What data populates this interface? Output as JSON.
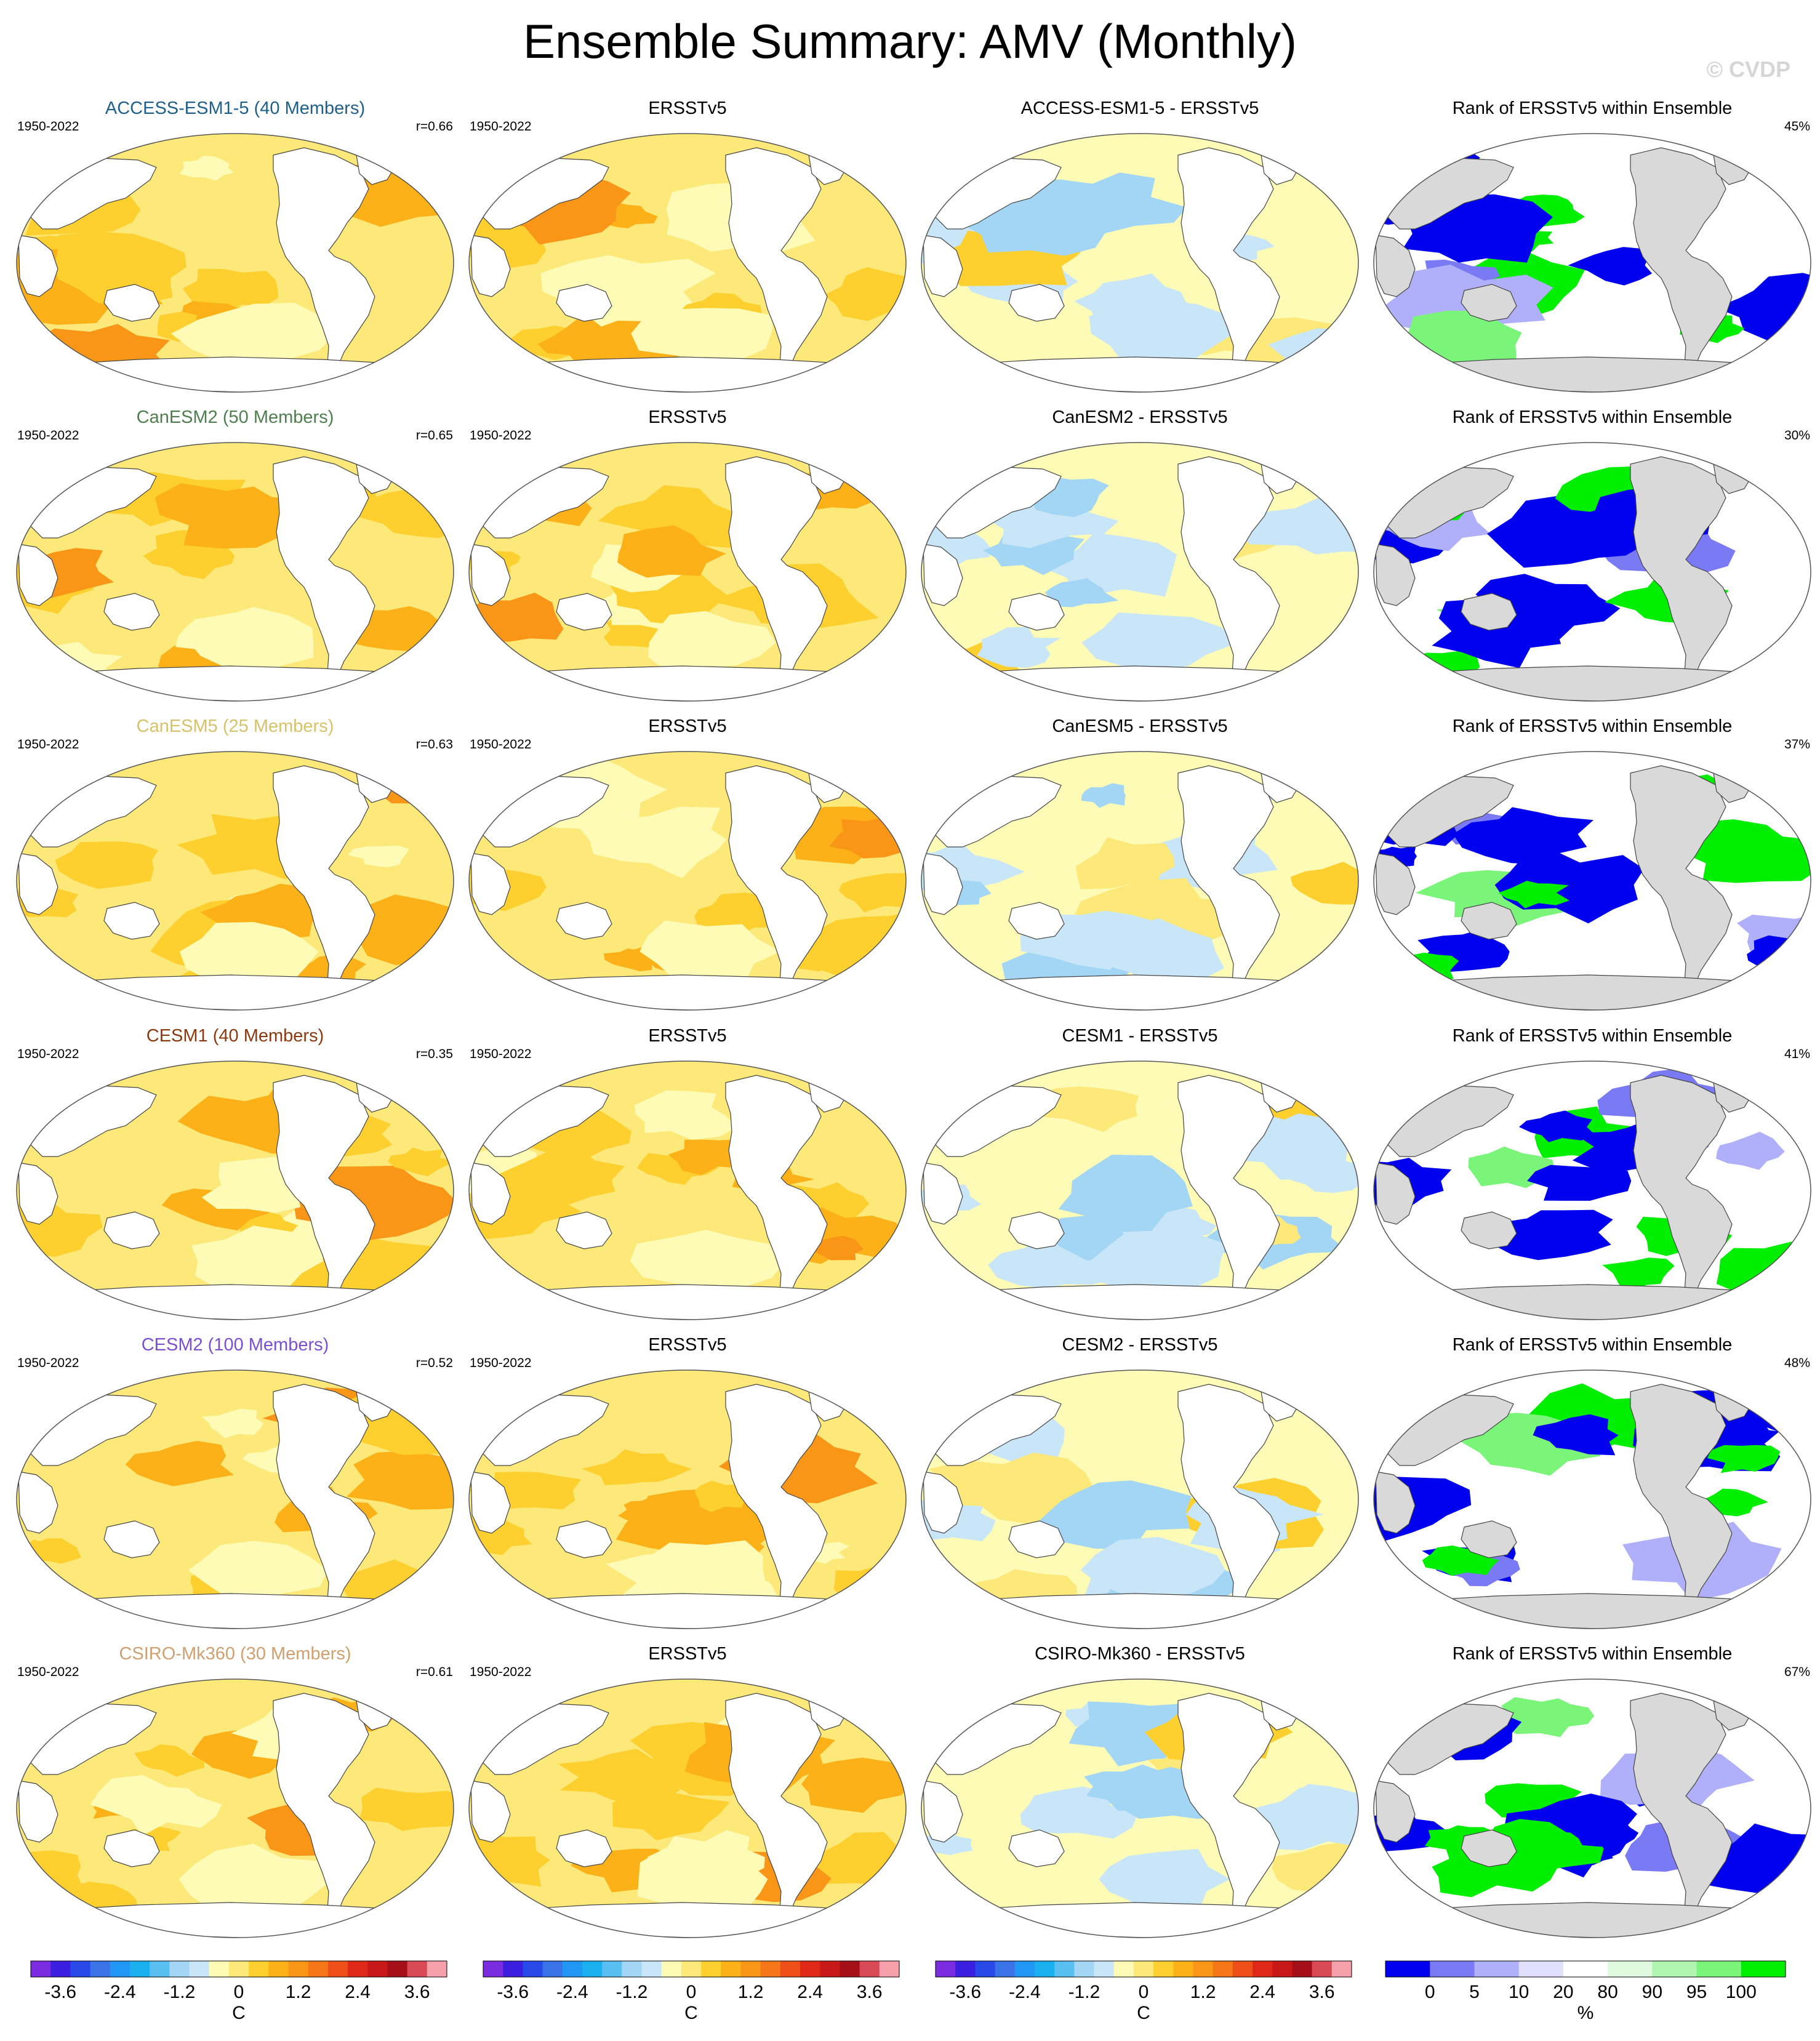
{
  "title": "Ensemble Summary: AMV (Monthly)",
  "watermark": "© CVDP",
  "colors": {
    "sst_levels": [
      "#7b2be0",
      "#3c1ee0",
      "#2848e8",
      "#3a72e8",
      "#2196f3",
      "#1ab0f0",
      "#59bff0",
      "#a3d6f5",
      "#c8e6f7",
      "#fdfbb6",
      "#fde979",
      "#fdd030",
      "#fbb117",
      "#f99618",
      "#f67718",
      "#ee4f18",
      "#e02818",
      "#c81818",
      "#a51018",
      "#d84a55",
      "#f5a0aa"
    ],
    "rank_levels": [
      "#0000ee",
      "#7a7af5",
      "#b0b0fa",
      "#e0e0fc",
      "#ffffff",
      "#e0fae0",
      "#b0f5b0",
      "#7af57a",
      "#00ee00"
    ],
    "land": "#ffffff",
    "land_gray": "#d9d9d9",
    "outline": "#555555"
  },
  "rows": [
    {
      "model_title": "ACCESS-ESM1-5 (40 Members)",
      "model_color": "#1f5f8b",
      "period": "1950-2022",
      "corr": "r=0.66",
      "obs_title": "ERSSTv5",
      "obs_period": "1950-2022",
      "diff_title": "ACCESS-ESM1-5 - ERSSTv5",
      "rank_title": "Rank of ERSSTv5 within Ensemble",
      "rank_pct": "45%"
    },
    {
      "model_title": "CanESM2 (50 Members)",
      "model_color": "#4f7f4f",
      "period": "1950-2022",
      "corr": "r=0.65",
      "obs_title": "ERSSTv5",
      "obs_period": "1950-2022",
      "diff_title": "CanESM2 - ERSSTv5",
      "rank_title": "Rank of ERSSTv5 within Ensemble",
      "rank_pct": "30%"
    },
    {
      "model_title": "CanESM5 (25 Members)",
      "model_color": "#d6c26a",
      "period": "1950-2022",
      "corr": "r=0.63",
      "obs_title": "ERSSTv5",
      "obs_period": "1950-2022",
      "diff_title": "CanESM5 - ERSSTv5",
      "rank_title": "Rank of ERSSTv5 within Ensemble",
      "rank_pct": "37%"
    },
    {
      "model_title": "CESM1 (40 Members)",
      "model_color": "#8b3a0f",
      "period": "1950-2022",
      "corr": "r=0.35",
      "obs_title": "ERSSTv5",
      "obs_period": "1950-2022",
      "diff_title": "CESM1 - ERSSTv5",
      "rank_title": "Rank of ERSSTv5 within Ensemble",
      "rank_pct": "41%"
    },
    {
      "model_title": "CESM2 (100 Members)",
      "model_color": "#7b4fd0",
      "period": "1950-2022",
      "corr": "r=0.52",
      "obs_title": "ERSSTv5",
      "obs_period": "1950-2022",
      "diff_title": "CESM2 - ERSSTv5",
      "rank_title": "Rank of ERSSTv5 within Ensemble",
      "rank_pct": "48%"
    },
    {
      "model_title": "CSIRO-Mk360 (30 Members)",
      "model_color": "#d0a070",
      "period": "1950-2022",
      "corr": "r=0.61",
      "obs_title": "ERSSTv5",
      "obs_period": "1950-2022",
      "diff_title": "CSIRO-Mk360 - ERSSTv5",
      "rank_title": "Rank of ERSSTv5 within Ensemble",
      "rank_pct": "67%"
    }
  ],
  "colorbars": {
    "sst_ticks": [
      "-3.6",
      "-2.4",
      "-1.2",
      "0",
      "1.2",
      "2.4",
      "3.6"
    ],
    "sst_unit": "C",
    "rank_ticks": [
      "0",
      "5",
      "10",
      "20",
      "80",
      "90",
      "95",
      "100"
    ],
    "rank_unit": "%"
  },
  "chart_data": {
    "type": "heatmap",
    "title": "Ensemble Summary: AMV (Monthly)",
    "layout": "6 rows x 4 columns of global maps",
    "columns": [
      "model ensemble mean AMV pattern",
      "ERSSTv5 AMV pattern",
      "model minus ERSSTv5",
      "rank of ERSSTv5 within ensemble"
    ],
    "period": "1950-2022",
    "sst_colorbar": {
      "unit": "C",
      "range": [
        -4.2,
        4.2
      ],
      "ticks": [
        -3.6,
        -2.4,
        -1.2,
        0,
        1.2,
        2.4,
        3.6
      ],
      "levels": 21
    },
    "rank_colorbar": {
      "unit": "%",
      "boundaries": [
        0,
        5,
        10,
        20,
        80,
        90,
        95,
        100
      ]
    },
    "models": [
      {
        "name": "ACCESS-ESM1-5",
        "members": 40,
        "pattern_correlation": 0.66,
        "rank_percent": 45
      },
      {
        "name": "CanESM2",
        "members": 50,
        "pattern_correlation": 0.65,
        "rank_percent": 30
      },
      {
        "name": "CanESM5",
        "members": 25,
        "pattern_correlation": 0.63,
        "rank_percent": 37
      },
      {
        "name": "CESM1",
        "members": 40,
        "pattern_correlation": 0.35,
        "rank_percent": 41
      },
      {
        "name": "CESM2",
        "members": 100,
        "pattern_correlation": 0.52,
        "rank_percent": 48
      },
      {
        "name": "CSIRO-Mk360",
        "members": 30,
        "pattern_correlation": 0.61,
        "rank_percent": 67
      }
    ]
  }
}
